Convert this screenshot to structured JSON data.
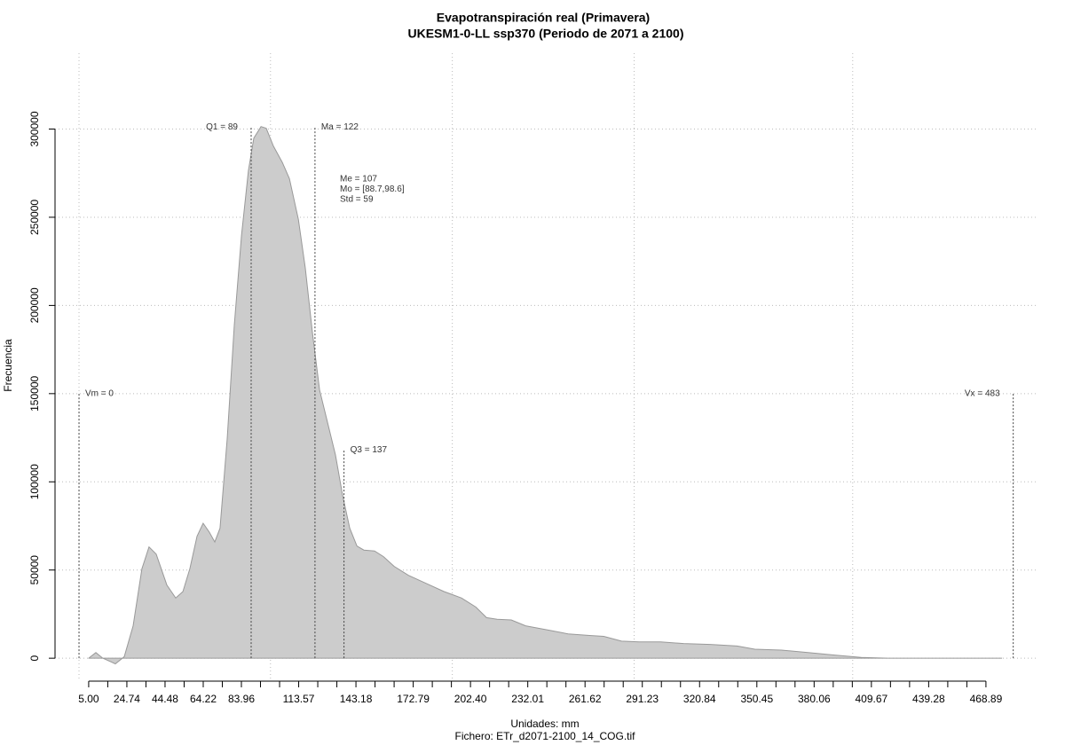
{
  "chart_data": {
    "type": "area",
    "title": "Evapotranspiración real (Primavera)",
    "subtitle": "UKESM1-0-LL ssp370 (Periodo de 2071 a 2100)",
    "x_label": "Unidades: mm",
    "caption": "Fichero: ETr_d2071-2100_14_COG.tif",
    "y_label": "Frecuencia",
    "color": "#cccccc",
    "line_color": "#999999",
    "grid": true,
    "x": [
      5,
      8.7,
      12.3,
      18.8,
      23.4,
      28,
      32.5,
      36.2,
      39.9,
      45.4,
      50,
      53.7,
      57.3,
      61,
      64.2,
      67.4,
      70.2,
      72.9,
      76.6,
      80.3,
      84,
      87.6,
      90.4,
      94.1,
      96.8,
      100.5,
      105.1,
      108.8,
      113.4,
      117,
      120.7,
      124.4,
      129,
      132.6,
      136.3,
      140,
      143.7,
      147.3,
      152.8,
      157.4,
      162.9,
      170.3,
      179.5,
      188.7,
      197.8,
      205.2,
      210.7,
      216.2,
      223.5,
      230.9,
      241.9,
      252.9,
      263.9,
      271.3,
      280.5,
      289.7,
      300.7,
      312.6,
      326.4,
      340.2,
      349.4,
      363.1,
      376.9,
      390.7,
      404.4,
      418.2,
      477
    ],
    "values": [
      0,
      3200,
      0,
      -3200,
      900,
      18400,
      50700,
      63100,
      59000,
      41500,
      34100,
      37800,
      50700,
      69100,
      76500,
      71400,
      65900,
      73700,
      124400,
      188900,
      239600,
      276500,
      294900,
      301400,
      300400,
      290300,
      281100,
      271900,
      248800,
      221200,
      184300,
      152100,
      131300,
      115200,
      92200,
      73700,
      63600,
      61300,
      60800,
      57600,
      52100,
      47000,
      42400,
      37800,
      34100,
      29000,
      23000,
      22100,
      21700,
      18400,
      16100,
      13800,
      12900,
      12400,
      9700,
      9200,
      9200,
      8300,
      7800,
      6900,
      5100,
      4600,
      3200,
      1800,
      500,
      0,
      0
    ],
    "xlim": [
      -12.4,
      496
    ],
    "ylim": [
      -13000,
      343000
    ],
    "xticks": [
      {
        "value": 5,
        "label": "5.00"
      },
      24.74,
      44.48,
      64.22,
      83.96,
      113.57,
      143.18,
      172.79,
      {
        "value": 202.4,
        "label": "202.40"
      },
      232.01,
      261.62,
      291.23,
      320.84,
      350.45,
      380.06,
      409.67,
      439.28,
      468.89
    ],
    "xminorticks": [
      14.87,
      34.61,
      54.35,
      74.09,
      93.83,
      103.7,
      123.44,
      133.31,
      153.05,
      162.92,
      182.66,
      192.53,
      212.27,
      222.14,
      241.88,
      251.75,
      271.49,
      281.36,
      301.1,
      310.97,
      330.71,
      340.58,
      360.32,
      370.19,
      389.93,
      399.8,
      419.54,
      429.41,
      449.15,
      459.02
    ],
    "xgrid": [
      0,
      99,
      193,
      287,
      400
    ],
    "yticks": [
      0,
      50000,
      100000,
      150000,
      200000,
      250000,
      300000
    ],
    "annotations": [
      {
        "label": "Q1 = 89",
        "x": 89,
        "y": 301000
      },
      {
        "label": "Ma = 122",
        "x": 122,
        "y": 301000
      },
      {
        "label": "Q3 = 137",
        "x": 137,
        "y": 118000
      },
      {
        "label": "Vm = 0",
        "x": 0,
        "y": 150000
      },
      {
        "label": "Vx = 483",
        "x": 483,
        "y": 150000
      }
    ],
    "stats": [
      "Me = 107",
      "Mo = [88.7,98.6]",
      "Std = 59"
    ]
  }
}
